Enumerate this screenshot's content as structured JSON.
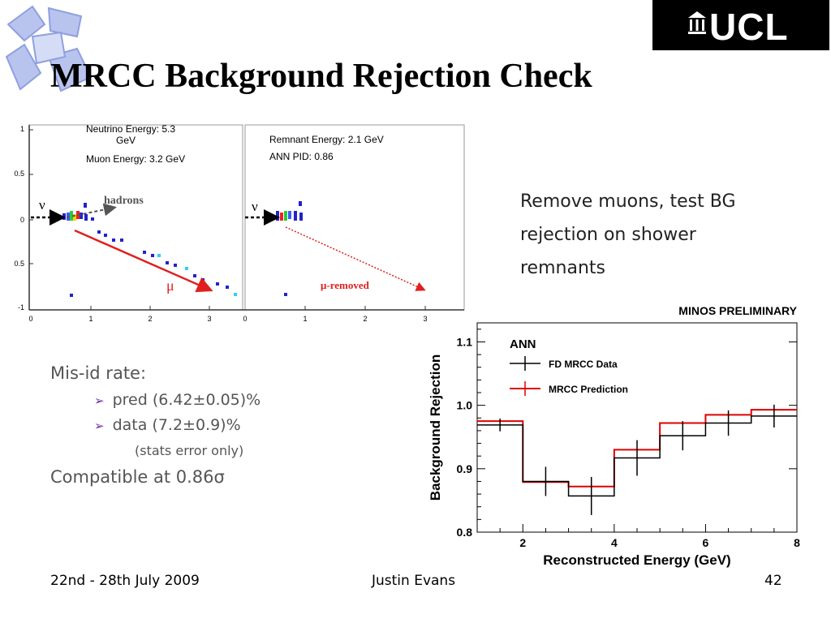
{
  "slide": {
    "title": "MRCC Background Rejection Check",
    "ucl_logo_text": "UCL",
    "description": [
      "Remove muons, test BG",
      "rejection on shower",
      "remnants"
    ],
    "misid_heading": "Mis-id rate:",
    "bullets": [
      "pred (6.42±0.05)%",
      "data (7.2±0.9)%"
    ],
    "stats_note": "(stats error only)",
    "compatible": "Compatible at 0.86σ",
    "footer": {
      "date": "22nd - 28th July 2009",
      "author": "Justin Evans",
      "page": "42"
    },
    "colors": {
      "bullet_arrow": "#7030a0",
      "muon_track": "#e02020",
      "prediction": "#e00000",
      "data": "#000000"
    }
  },
  "event_display": {
    "left_panel": {
      "labels": [
        "Neutrino Energy: 5.3",
        "GeV",
        "Muon Energy: 3.2 GeV"
      ],
      "nu_label": "ν",
      "hadrons_label": "hadrons",
      "mu_label": "μ",
      "y_ticks": [
        "1",
        "0.5",
        "0",
        "0.5",
        "-1"
      ],
      "x_ticks": [
        "0",
        "1",
        "2",
        "3"
      ]
    },
    "right_panel": {
      "labels": [
        "Remnant Energy: 2.1 GeV",
        "ANN PID: 0.86"
      ],
      "nu_label": "ν",
      "mu_removed_label": "μ-removed",
      "x_ticks": [
        "0",
        "1",
        "2",
        "3"
      ]
    }
  },
  "chart_data": {
    "type": "line",
    "title": "MINOS PRELIMINARY",
    "xlabel": "Reconstructed Energy (GeV)",
    "ylabel": "Background Rejection",
    "xlim": [
      1,
      8
    ],
    "ylim": [
      0.8,
      1.13
    ],
    "x_ticks": [
      2,
      4,
      6,
      8
    ],
    "y_ticks": [
      0.8,
      0.9,
      1.0,
      1.1
    ],
    "y_tick_labels": [
      "0.8",
      "0.9",
      "1.0",
      "1.1"
    ],
    "x_tick_labels": [
      "2",
      "4",
      "6",
      "8"
    ],
    "legend_title": "ANN",
    "legend_position": "top-left",
    "bin_edges": [
      1,
      2,
      3,
      4,
      5,
      6,
      7,
      8
    ],
    "series": [
      {
        "name": "FD MRCC Data",
        "color": "#000000",
        "values": [
          0.969,
          0.88,
          0.857,
          0.917,
          0.952,
          0.972,
          0.983
        ],
        "errors": [
          0.01,
          0.023,
          0.03,
          0.028,
          0.023,
          0.02,
          0.018
        ]
      },
      {
        "name": "MRCC Prediction",
        "color": "#e00000",
        "values": [
          0.975,
          0.879,
          0.872,
          0.93,
          0.972,
          0.985,
          0.993
        ]
      }
    ]
  }
}
